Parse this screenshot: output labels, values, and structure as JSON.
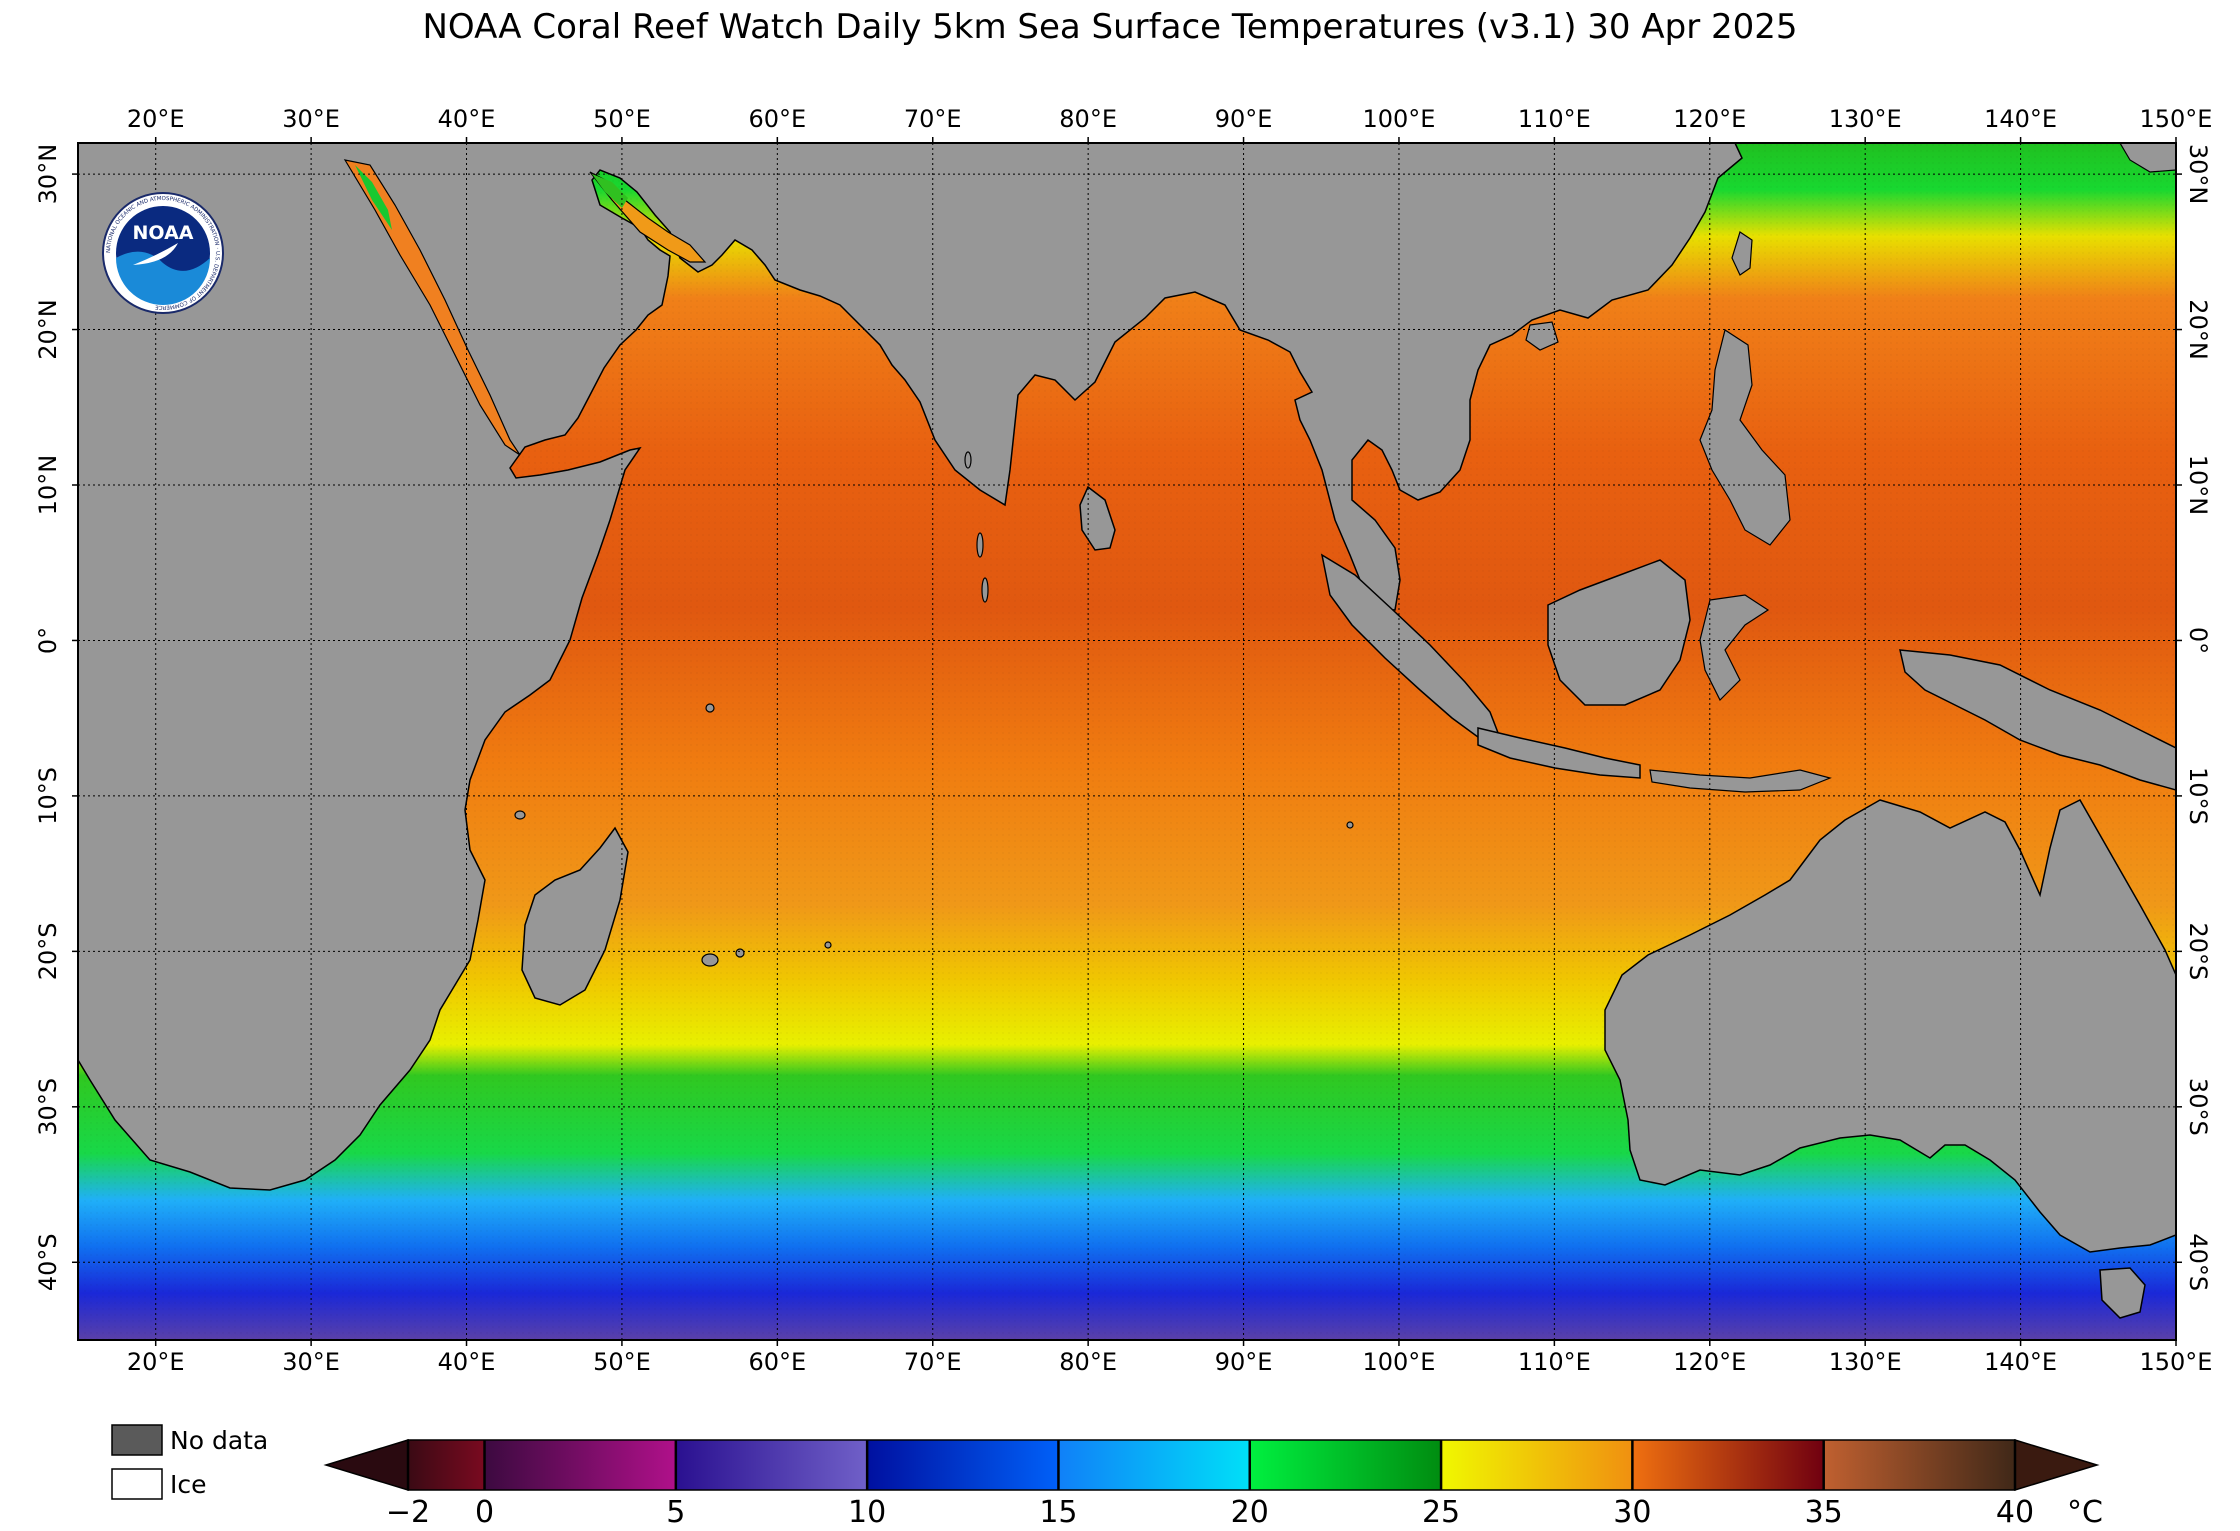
{
  "title": "NOAA Coral Reef Watch Daily 5km Sea Surface Temperatures  (v3.1)   30 Apr 2025",
  "logo": {
    "icon": "noaa-logo-icon",
    "text": "NOAA",
    "ring_text": "NATIONAL OCEANIC AND ATMOSPHERIC ADMINISTRATION · U.S. DEPARTMENT OF COMMERCE"
  },
  "map": {
    "lon_range": [
      15,
      150
    ],
    "lat_range": [
      -45,
      32
    ],
    "lon_ticks": [
      20,
      30,
      40,
      50,
      60,
      70,
      80,
      90,
      100,
      110,
      120,
      130,
      140,
      150
    ],
    "lon_labels": [
      "20°E",
      "30°E",
      "40°E",
      "50°E",
      "60°E",
      "70°E",
      "80°E",
      "90°E",
      "100°E",
      "110°E",
      "120°E",
      "130°E",
      "140°E",
      "150°E"
    ],
    "lat_ticks": [
      30,
      20,
      10,
      0,
      -10,
      -20,
      -30,
      -40
    ],
    "lat_labels": [
      "30°N",
      "20°N",
      "10°N",
      "0°",
      "10°S",
      "20°S",
      "30°S",
      "40°S"
    ],
    "grid": "dotted",
    "land_color": "#979797",
    "ocean_bands": [
      {
        "lat": -45,
        "color": "#5a40a8"
      },
      {
        "lat": -42,
        "color": "#1a28d8"
      },
      {
        "lat": -39,
        "color": "#1070f0"
      },
      {
        "lat": -36,
        "color": "#20b0f8"
      },
      {
        "lat": -33,
        "color": "#18d848"
      },
      {
        "lat": -28,
        "color": "#30c820"
      },
      {
        "lat": -26,
        "color": "#e8f000"
      },
      {
        "lat": -22,
        "color": "#f0c800"
      },
      {
        "lat": -17,
        "color": "#f09818"
      },
      {
        "lat": -8,
        "color": "#f07c10"
      },
      {
        "lat": 2,
        "color": "#e05810"
      },
      {
        "lat": 12,
        "color": "#e86010"
      },
      {
        "lat": 22,
        "color": "#f08018"
      },
      {
        "lat": 26,
        "color": "#e8e000"
      },
      {
        "lat": 29,
        "color": "#18d830"
      },
      {
        "lat": 32,
        "color": "#20c020"
      }
    ]
  },
  "legend": {
    "items": [
      {
        "label": "No data",
        "color": "#5a5a5a"
      },
      {
        "label": "Ice",
        "color": "#ffffff"
      }
    ]
  },
  "colorbar": {
    "ticks": [
      -2,
      0,
      5,
      10,
      15,
      20,
      25,
      30,
      35,
      40
    ],
    "tick_labels": [
      "−2",
      "0",
      "5",
      "10",
      "15",
      "20",
      "25",
      "30",
      "35",
      "40"
    ],
    "unit": "°C",
    "under_color": "#2a0a10",
    "over_color": "#3a1a10",
    "segments": [
      {
        "from": -2,
        "to": 0,
        "colors": [
          "#3a0a14",
          "#7a0a20"
        ]
      },
      {
        "from": 0,
        "to": 5,
        "colors": [
          "#3c0a40",
          "#b0108a"
        ]
      },
      {
        "from": 5,
        "to": 10,
        "colors": [
          "#2a1090",
          "#7060c8"
        ]
      },
      {
        "from": 10,
        "to": 15,
        "colors": [
          "#0010a0",
          "#0060f8"
        ]
      },
      {
        "from": 15,
        "to": 20,
        "colors": [
          "#1080f8",
          "#00e0f8"
        ]
      },
      {
        "from": 20,
        "to": 25,
        "colors": [
          "#00f040",
          "#008c10"
        ]
      },
      {
        "from": 25,
        "to": 30,
        "colors": [
          "#f0f800",
          "#f09010"
        ]
      },
      {
        "from": 30,
        "to": 35,
        "colors": [
          "#f07010",
          "#700010"
        ]
      },
      {
        "from": 35,
        "to": 40,
        "colors": [
          "#c06030",
          "#402818"
        ]
      }
    ]
  }
}
